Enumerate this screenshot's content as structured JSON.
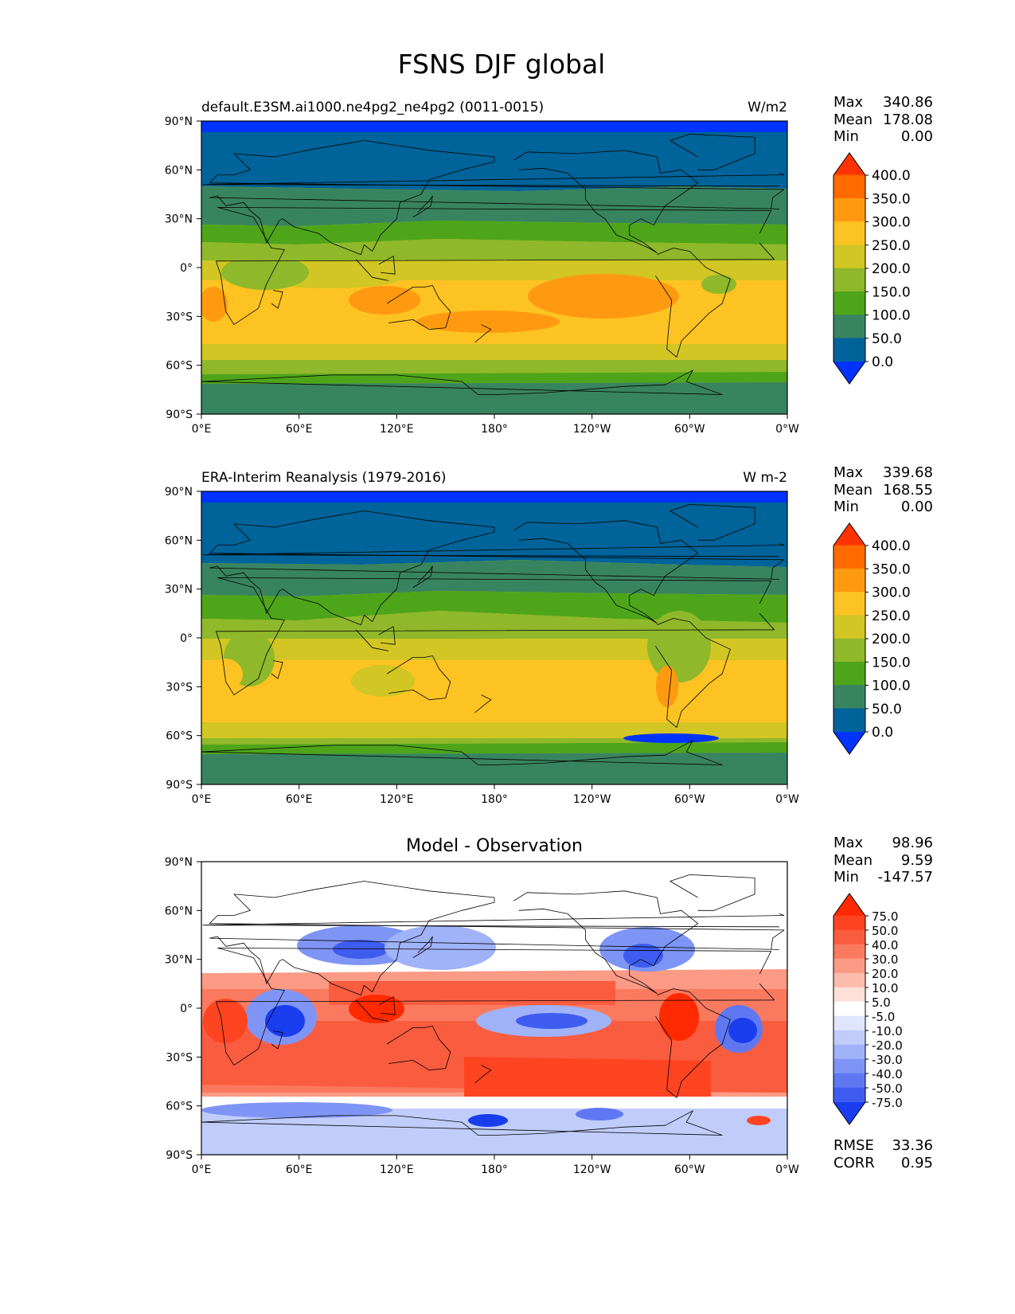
{
  "title": "FSNS DJF global",
  "axes": {
    "lat_ticks": [
      "90°N",
      "60°N",
      "30°N",
      "0°",
      "30°S",
      "60°S",
      "90°S"
    ],
    "lon_ticks": [
      "0°E",
      "60°E",
      "120°E",
      "180°",
      "120°W",
      "60°W",
      "0°W"
    ]
  },
  "panels": [
    {
      "id": "test",
      "title_left": "default.E3SM.ai1000.ne4pg2_ne4pg2 (0011-0015)",
      "title_center": "",
      "units": "W/m2",
      "stats": [
        {
          "label": "Max",
          "value": "340.86"
        },
        {
          "label": "Mean",
          "value": "178.08"
        },
        {
          "label": "Min",
          "value": "0.00"
        }
      ],
      "colorbar_labels": [
        "400.0",
        "350.0",
        "300.0",
        "250.0",
        "200.0",
        "150.0",
        "100.0",
        "50.0",
        "0.0"
      ],
      "colorbar_colors": [
        "#ff3300",
        "#ff6a00",
        "#ff9a10",
        "#fdc322",
        "#d1c623",
        "#8fb82a",
        "#4ea51a",
        "#398460",
        "#00649a",
        "#0033ff"
      ]
    },
    {
      "id": "reference",
      "title_left": "ERA-Interim Reanalysis (1979-2016)",
      "title_center": "",
      "units": "W m-2",
      "stats": [
        {
          "label": "Max",
          "value": "339.68"
        },
        {
          "label": "Mean",
          "value": "168.55"
        },
        {
          "label": "Min",
          "value": "0.00"
        }
      ],
      "colorbar_labels": [
        "400.0",
        "350.0",
        "300.0",
        "250.0",
        "200.0",
        "150.0",
        "100.0",
        "50.0",
        "0.0"
      ],
      "colorbar_colors": [
        "#ff3300",
        "#ff6a00",
        "#ff9a10",
        "#fdc322",
        "#d1c623",
        "#8fb82a",
        "#4ea51a",
        "#398460",
        "#00649a",
        "#0033ff"
      ]
    },
    {
      "id": "difference",
      "title_left": "",
      "title_center": "Model - Observation",
      "units": "",
      "stats": [
        {
          "label": "Max",
          "value": "98.96"
        },
        {
          "label": "Mean",
          "value": "9.59"
        },
        {
          "label": "Min",
          "value": "-147.57"
        }
      ],
      "colorbar_labels": [
        "75.0",
        "50.0",
        "40.0",
        "30.0",
        "20.0",
        "10.0",
        "5.0",
        "-5.0",
        "-10.0",
        "-20.0",
        "-30.0",
        "-40.0",
        "-50.0",
        "-75.0"
      ],
      "colorbar_colors": [
        "#ff2a00",
        "#ff4422",
        "#fa5c40",
        "#fa7a60",
        "#fb9a85",
        "#fcbcad",
        "#fde0d8",
        "#ffffff",
        "#dfe6fd",
        "#c0cdfb",
        "#a0b2f8",
        "#7f95f5",
        "#5f78f2",
        "#3f5cf0",
        "#1a3dee"
      ],
      "footer_stats": [
        {
          "label": "RMSE",
          "value": "33.36"
        },
        {
          "label": "CORR",
          "value": "0.95"
        }
      ]
    }
  ]
}
